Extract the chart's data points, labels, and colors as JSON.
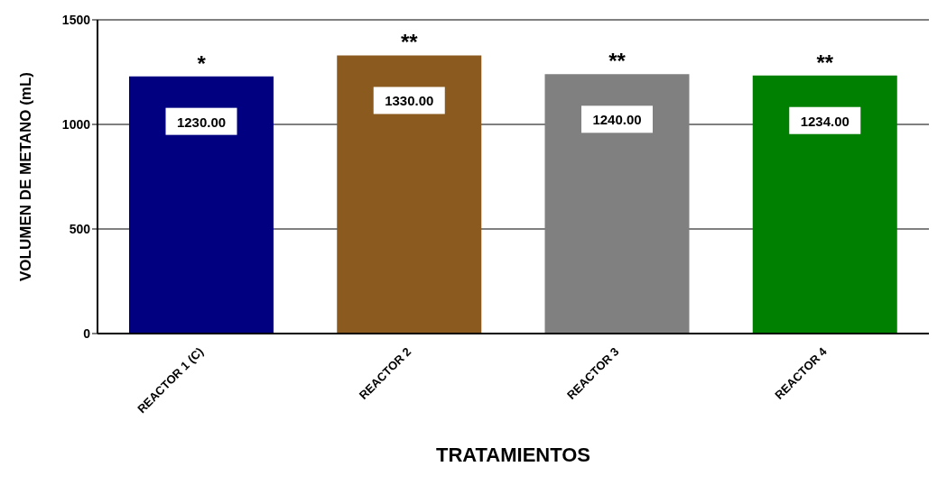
{
  "chart_data": {
    "type": "bar",
    "xlabel": "TRATAMIENTOS",
    "ylabel": "VOLUMEN DE METANO (mL)",
    "categories": [
      "REACTOR 1 (C)",
      "REACTOR 2",
      "REACTOR 3",
      "REACTOR 4"
    ],
    "values": [
      1230,
      1330,
      1240,
      1234
    ],
    "value_labels": [
      "1230.00",
      "1330.00",
      "1240.00",
      "1234.00"
    ],
    "colors": [
      "#000080",
      "#8b5a1e",
      "#808080",
      "#008000"
    ],
    "ylim": [
      0,
      1500
    ],
    "yticks": [
      0,
      500,
      1000,
      1500
    ],
    "grid": "y",
    "annotations": [
      {
        "text": "*",
        "x": "REACTOR 1 (C)",
        "y": 1230
      },
      {
        "text": "**",
        "x": "REACTOR 2",
        "y": 1330
      },
      {
        "text": "**",
        "x": "REACTOR 3",
        "y": 1240
      },
      {
        "text": "**",
        "x": "REACTOR 4",
        "y": 1234
      }
    ]
  }
}
